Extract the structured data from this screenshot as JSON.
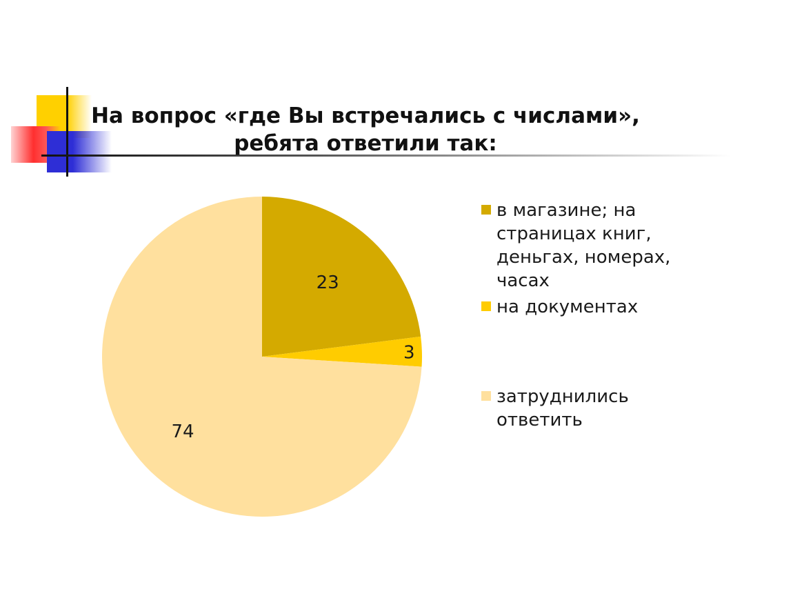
{
  "title": {
    "line1": "На вопрос «где Вы встречались с числами»,",
    "line2": "ребята ответили так:"
  },
  "chart_data": {
    "type": "pie",
    "slices": [
      {
        "label": "в магазине;  на страницах книг, деньгах, номерах, часах",
        "value": 23,
        "color": "#d4aa00"
      },
      {
        "label": "на документах",
        "value": 3,
        "color": "#ffcc00"
      },
      {
        "label": "затруднились ответить",
        "value": 74,
        "color": "#ffe09e"
      }
    ],
    "legend_position": "right"
  },
  "legend": {
    "item1_lines": [
      "в магазине;  на",
      "страницах книг,",
      "деньгах, номерах,",
      "часах"
    ],
    "item2": "на документах",
    "item3_lines": [
      "затруднились",
      "ответить"
    ]
  }
}
